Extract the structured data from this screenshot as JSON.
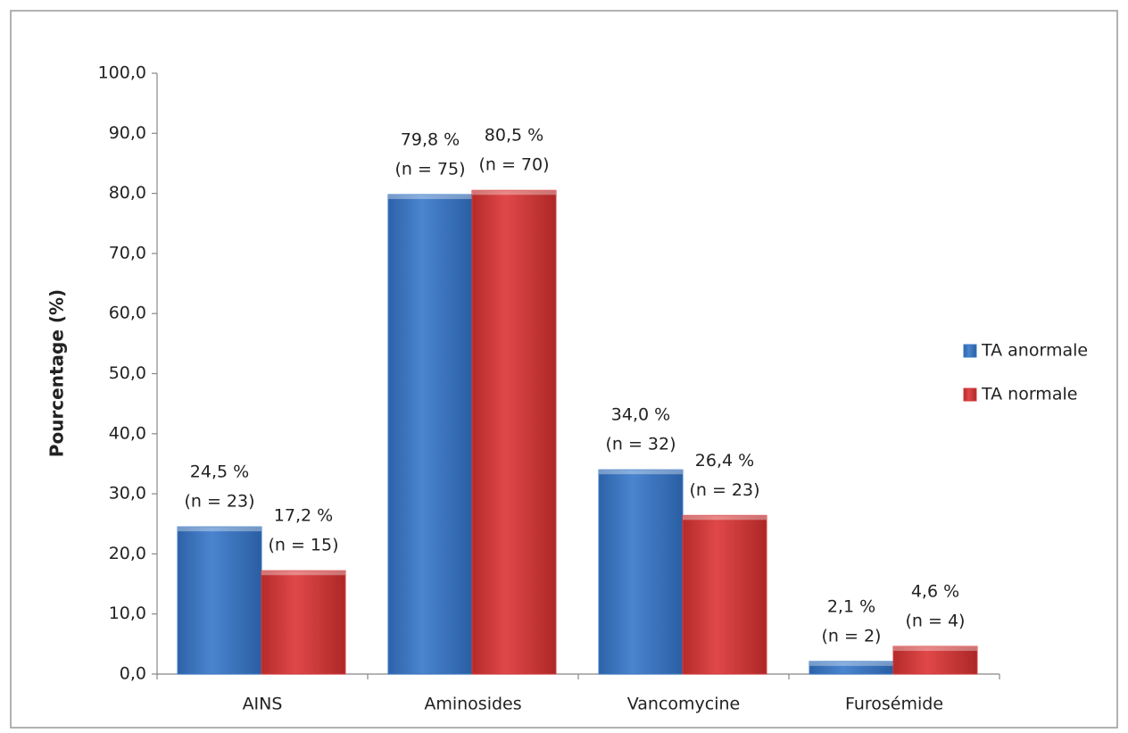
{
  "chart_data": {
    "type": "bar",
    "y_label": "Pourcentage (%)",
    "categories": [
      "AINS",
      "Aminosides",
      "Vancomycine",
      "Furosémide"
    ],
    "series": [
      {
        "name": "TA anormale",
        "color": "#3a78c4",
        "values": [
          24.5,
          79.8,
          34.0,
          2.1
        ],
        "value_labels": [
          "24,5 %",
          "79,8 %",
          "34,0 %",
          "2,1 %"
        ],
        "n_labels": [
          "(n = 23)",
          "(n = 75)",
          "(n = 32)",
          "(n = 2)"
        ]
      },
      {
        "name": "TA normale",
        "color": "#d63b3b",
        "values": [
          17.2,
          80.5,
          26.4,
          4.6
        ],
        "value_labels": [
          "17,2 %",
          "80,5  %",
          "26,4 %",
          "4,6 %"
        ],
        "n_labels": [
          "(n = 15)",
          "(n = 70)",
          "(n = 23)",
          "(n = 4)"
        ]
      }
    ],
    "ylim": [
      0,
      100
    ],
    "yticks": [
      {
        "value": 0,
        "label": "0,0"
      },
      {
        "value": 10,
        "label": "10,0"
      },
      {
        "value": 20,
        "label": "20,0"
      },
      {
        "value": 30,
        "label": "30,0"
      },
      {
        "value": 40,
        "label": "40,0"
      },
      {
        "value": 50,
        "label": "50,0"
      },
      {
        "value": 60,
        "label": "60,0"
      },
      {
        "value": 70,
        "label": "70,0"
      },
      {
        "value": 80,
        "label": "80,0"
      },
      {
        "value": 90,
        "label": "90,0"
      },
      {
        "value": 100,
        "label": "100,0"
      }
    ],
    "legend": "right"
  }
}
